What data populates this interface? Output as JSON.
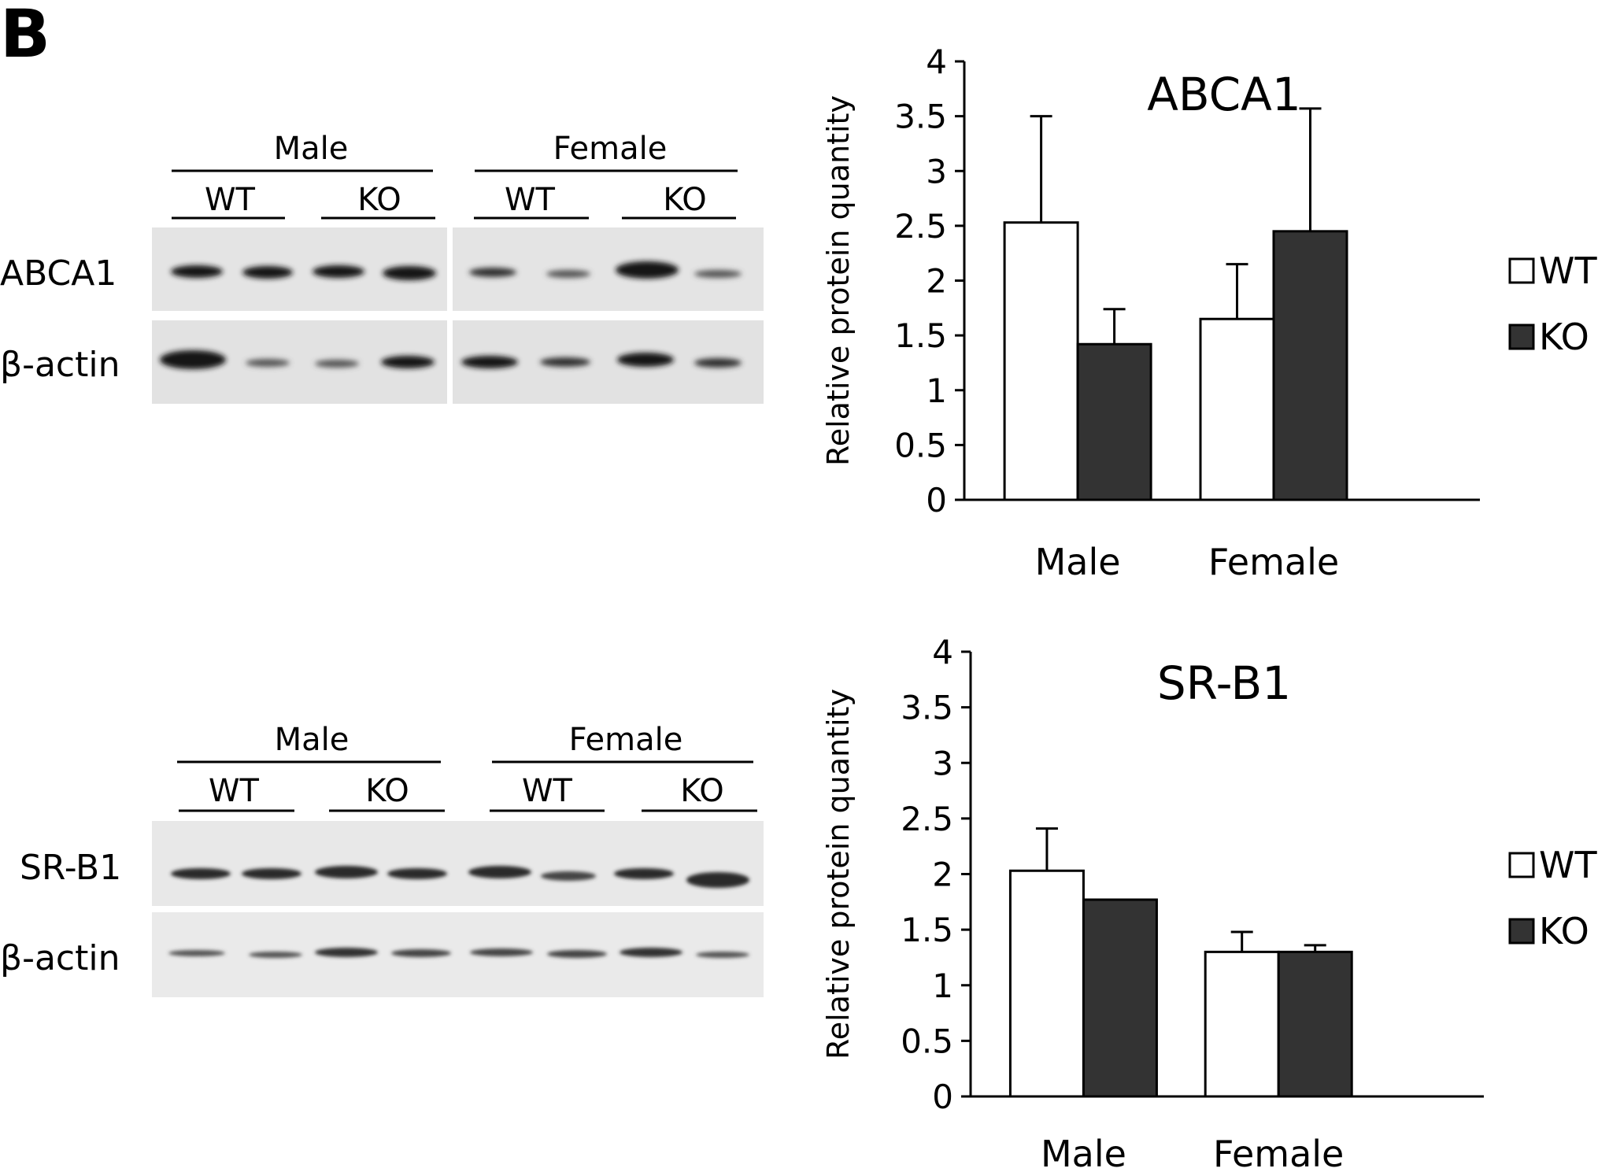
{
  "panel_label": "B",
  "blots": [
    {
      "groups": [
        {
          "label": "Male",
          "genotypes": [
            "WT",
            "KO"
          ]
        },
        {
          "label": "Female",
          "genotypes": [
            "WT",
            "KO"
          ]
        }
      ],
      "row_labels": [
        "ABCA1",
        "β-actin"
      ]
    },
    {
      "groups": [
        {
          "label": "Male",
          "genotypes": [
            "WT",
            "KO"
          ]
        },
        {
          "label": "Female",
          "genotypes": [
            "WT",
            "KO"
          ]
        }
      ],
      "row_labels": [
        "SR-B1",
        "β-actin"
      ]
    }
  ],
  "chart_data": [
    {
      "type": "bar",
      "title": "ABCA1",
      "ylabel": "Relative protein quantity",
      "xlabel": "",
      "categories": [
        "Male",
        "Female"
      ],
      "ylim": [
        0,
        4
      ],
      "yticks": [
        "0",
        "0.5",
        "1",
        "1.5",
        "2",
        "2.5",
        "3",
        "3.5",
        "4"
      ],
      "series": [
        {
          "name": "WT",
          "values": [
            2.53,
            1.65
          ],
          "errors": [
            0.97,
            0.5
          ],
          "color": "#ffffff"
        },
        {
          "name": "KO",
          "values": [
            1.42,
            2.45
          ],
          "errors": [
            0.32,
            1.12
          ],
          "color": "#333333"
        }
      ],
      "legend_position": "right"
    },
    {
      "type": "bar",
      "title": "SR-B1",
      "ylabel": "Relative protein quantity",
      "xlabel": "",
      "categories": [
        "Male",
        "Female"
      ],
      "ylim": [
        0,
        4
      ],
      "yticks": [
        "0",
        "0.5",
        "1",
        "1.5",
        "2",
        "2.5",
        "3",
        "3.5",
        "4"
      ],
      "series": [
        {
          "name": "WT",
          "values": [
            2.03,
            1.3
          ],
          "errors": [
            0.38,
            0.18
          ],
          "color": "#ffffff"
        },
        {
          "name": "KO",
          "values": [
            1.77,
            1.3
          ],
          "errors": [
            0.0,
            0.06
          ],
          "color": "#333333"
        }
      ],
      "legend_position": "right"
    }
  ]
}
